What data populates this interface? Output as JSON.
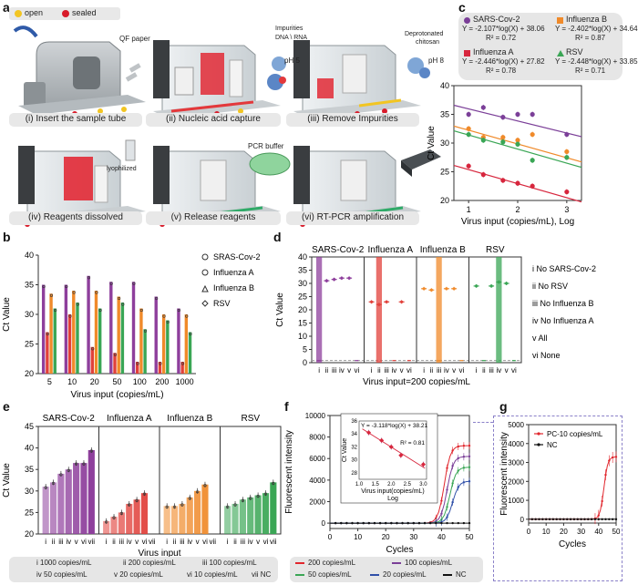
{
  "panels": {
    "a": "a",
    "b": "b",
    "c": "c",
    "d": "d",
    "e": "e",
    "f": "f",
    "g": "g"
  },
  "a": {
    "legend_open": "open",
    "legend_sealed": "sealed",
    "colors": {
      "open": "#f2c522",
      "sealed": "#d81b2a"
    },
    "captions": [
      "(i) Insert the sample tube",
      "(ii) Nucleic acid capture",
      "(iii) Remove Impurities",
      "(iv) Reagents dissolved",
      "(v) Release reagents",
      "(vi) RT-PCR amplification"
    ],
    "annotations": {
      "qf_paper": "QF paper",
      "impurities": "Impurities",
      "dna_rna": "DNA \\ RNA",
      "ph5": "pH 5",
      "deprotonated": "Deprotonated",
      "chitosan": "chitosan",
      "ph8": "pH 8",
      "lyophilized": "lyophilized",
      "pcr_buffer": "PCR buffer"
    }
  },
  "c_chart": {
    "equations": [
      {
        "name": "SARS-Cov-2",
        "eq": "Y = -2.107*log(X) + 38.06",
        "r2": "R² = 0.72",
        "color": "#7b3f98"
      },
      {
        "name": "Influenza B",
        "eq": "Y = -2.402*log(X) + 34.64",
        "r2": "R² = 0.87",
        "color": "#f08a2a"
      },
      {
        "name": "Influenza A",
        "eq": "Y = -2.446*log(X) + 27.82",
        "r2": "R² = 0.78",
        "color": "#d7263d"
      },
      {
        "name": "RSV",
        "eq": "Y = -2.448*log(X) + 33.85",
        "r2": "R² = 0.71",
        "color": "#3aa655"
      }
    ]
  },
  "chart_data": [
    {
      "id": "b",
      "type": "bar",
      "categories": [
        "5",
        "10",
        "20",
        "50",
        "100",
        "200",
        "1000"
      ],
      "series": [
        {
          "name": "SRAS-Cov-2",
          "values": [
            35,
            35,
            36.5,
            35.5,
            35.5,
            33,
            31
          ],
          "color": "#8e3f9c"
        },
        {
          "name": "Influenza A",
          "values": [
            27,
            30,
            24.5,
            23.5,
            22,
            22,
            22
          ],
          "color": "#e1403a"
        },
        {
          "name": "Influenza B",
          "values": [
            33.5,
            34,
            34,
            33,
            31,
            30,
            30
          ],
          "color": "#f08a2a"
        },
        {
          "name": "RSV",
          "values": [
            31,
            32,
            31,
            32,
            27.5,
            29,
            27
          ],
          "color": "#3aa655"
        }
      ],
      "ylabel": "Ct Value",
      "xlabel": "Virus input (copies/mL)",
      "ylim": [
        20,
        40
      ],
      "yticks": [
        "20",
        "25",
        "30",
        "35",
        "40"
      ],
      "legend": [
        "SRAS-Cov-2",
        "Influenza A",
        "Influenza B",
        "RSV"
      ]
    },
    {
      "id": "c",
      "type": "scatter",
      "x": [
        1,
        1.3,
        1.7,
        2,
        2.3,
        3
      ],
      "series": [
        {
          "name": "SARS-Cov-2",
          "values": [
            35,
            36.2,
            34.5,
            35,
            35,
            31.5
          ],
          "color": "#7b3f98",
          "slope": -2.107,
          "intercept": 38.06
        },
        {
          "name": "Influenza B",
          "values": [
            32.5,
            31,
            31,
            30.5,
            31.5,
            28.5
          ],
          "color": "#f08a2a",
          "slope": -2.402,
          "intercept": 34.64
        },
        {
          "name": "RSV",
          "values": [
            31.5,
            30.5,
            30.2,
            29.8,
            27,
            27.5
          ],
          "color": "#3aa655",
          "slope": -2.448,
          "intercept": 33.85
        },
        {
          "name": "Influenza A",
          "values": [
            26,
            24.5,
            23.5,
            23,
            22.5,
            21.5
          ],
          "color": "#d7263d",
          "slope": -2.446,
          "intercept": 27.82
        }
      ],
      "ylabel": "Ct Value",
      "xlabel": "Virus input (copies/mL), Log",
      "ylim": [
        20,
        40
      ],
      "xlim": [
        0.7,
        3.3
      ],
      "yticks": [
        "20",
        "25",
        "30",
        "35",
        "40"
      ],
      "xticks": [
        "1",
        "2",
        "3"
      ]
    },
    {
      "id": "d",
      "type": "scatter",
      "groups": [
        "SARS-Cov-2",
        "Influenza A",
        "Influenza B",
        "RSV"
      ],
      "group_colors": [
        "#8e3f9c",
        "#e1403a",
        "#f08a2a",
        "#3aa655"
      ],
      "categories": [
        "i",
        "ii",
        "iii",
        "iv",
        "v",
        "vi"
      ],
      "values": [
        [
          0,
          31,
          31.5,
          32,
          32,
          0
        ],
        [
          23,
          22,
          23,
          0,
          23,
          0
        ],
        [
          28,
          27.5,
          0,
          28,
          28,
          0
        ],
        [
          29,
          0,
          29,
          30.5,
          30,
          0
        ]
      ],
      "ylabel": "Ct Value",
      "xlabel": "Virus input=200 copies/mL",
      "ylim": [
        0,
        40
      ],
      "yticks": [
        "0",
        "5",
        "10",
        "15",
        "20",
        "25",
        "30",
        "35",
        "40"
      ],
      "legend": [
        "i No SARS-Cov-2",
        "ii No RSV",
        "iii No Influenza B",
        "iv No Influenza A",
        "v All",
        "vi None"
      ]
    },
    {
      "id": "e",
      "type": "bar",
      "groups": [
        "SARS-Cov-2",
        "Influenza A",
        "Influenza B",
        "RSV"
      ],
      "group_colors": [
        "#8e3f9c",
        "#e1403a",
        "#f08a2a",
        "#3aa655"
      ],
      "categories": [
        "i",
        "ii",
        "iii",
        "iv",
        "v",
        "vi",
        "vii"
      ],
      "values": [
        [
          31,
          32,
          34,
          35,
          36.5,
          36.5,
          39.5
        ],
        [
          23,
          24,
          25,
          27,
          28,
          29.5,
          0
        ],
        [
          26.5,
          26.5,
          27,
          28.5,
          30,
          31.5,
          0
        ],
        [
          26.5,
          27,
          28,
          28.5,
          29,
          29.5,
          32
        ]
      ],
      "ylabel": "Ct Value",
      "xlabel": "Virus input",
      "ylim": [
        20,
        45
      ],
      "yticks": [
        "20",
        "25",
        "30",
        "35",
        "40",
        "45"
      ],
      "legend": [
        "i 1000 copies/mL",
        "ii 200 copies/mL",
        "iii 100 copies/mL",
        "iv 50 copies/mL",
        "v 20 copies/mL",
        "vi 10 copies/mL",
        "vii NC"
      ]
    },
    {
      "id": "f",
      "type": "line",
      "series": [
        {
          "name": "200 copies/mL",
          "color": "#e1262d",
          "plateau": 7200,
          "mid": 41
        },
        {
          "name": "100 copies/mL",
          "color": "#7b3f98",
          "plateau": 6200,
          "mid": 42
        },
        {
          "name": "50 copies/mL",
          "color": "#3aa655",
          "plateau": 5200,
          "mid": 43
        },
        {
          "name": "20 copies/mL",
          "color": "#2f4fa8",
          "plateau": 3900,
          "mid": 44
        },
        {
          "name": "NC",
          "color": "#111111",
          "plateau": 0,
          "mid": 50
        }
      ],
      "ylabel": "Fluorescent intensity",
      "xlabel": "Cycles",
      "xlim": [
        0,
        50
      ],
      "ylim": [
        -500,
        10000
      ],
      "xticks": [
        "0",
        "10",
        "20",
        "30",
        "40",
        "50"
      ],
      "yticks": [
        "0",
        "2000",
        "4000",
        "6000",
        "8000",
        "10000"
      ],
      "inset": {
        "equation": "Y = -3.118*log(X) + 38.21",
        "r2": "R² = 0.81",
        "ylabel": "Ct Value",
        "xlabel": "Virus input(copies/mL)",
        "xlabel2": "Log",
        "x": [
          1.3,
          1.7,
          2.0,
          2.3,
          3.0
        ],
        "values": [
          34.2,
          33.0,
          32.0,
          30.7,
          29.3
        ],
        "xticks": [
          "1.0",
          "1.5",
          "2.0",
          "2.5",
          "3.0"
        ],
        "yticks": [
          "28",
          "30",
          "32",
          "34",
          "36"
        ],
        "xlim": [
          1.0,
          3.1
        ],
        "ylim": [
          27,
          36
        ]
      }
    },
    {
      "id": "g",
      "type": "line",
      "series": [
        {
          "name": "PC-10 copies/mL",
          "color": "#e1262d",
          "plateau": 3300,
          "mid": 43
        },
        {
          "name": "NC",
          "color": "#111111",
          "plateau": 0,
          "mid": 50
        }
      ],
      "ylabel": "Fluorescent intensity",
      "xlabel": "Cycles",
      "xlim": [
        0,
        50
      ],
      "ylim": [
        -200,
        5000
      ],
      "xticks": [
        "0",
        "10",
        "20",
        "30",
        "40",
        "50"
      ],
      "yticks": [
        "0",
        "1000",
        "2000",
        "3000",
        "4000",
        "5000"
      ]
    }
  ]
}
